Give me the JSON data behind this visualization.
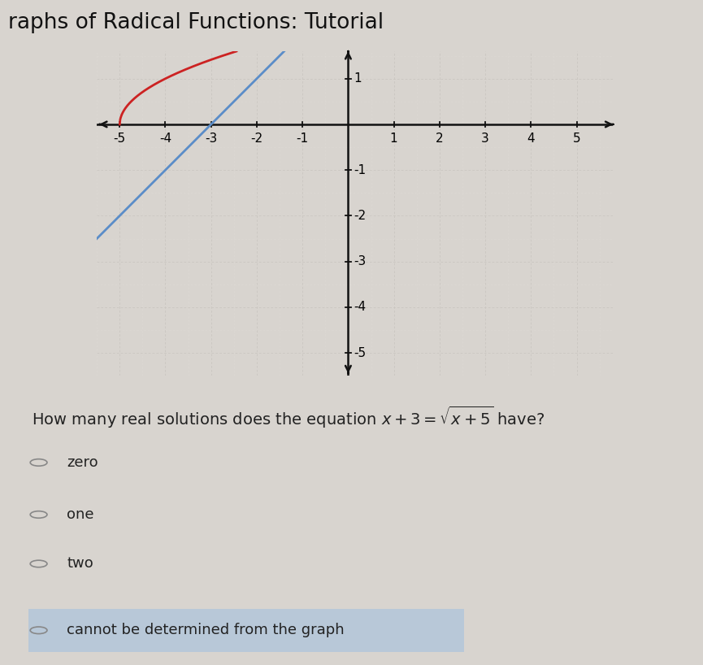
{
  "title": "raphs of Radical Functions: Tutorial",
  "title_bg_color": "#c5d3e0",
  "plot_bg_color": "#f0ede8",
  "page_bg_color": "#d8d4cf",
  "x_min": -5.5,
  "x_max": 5.8,
  "y_min": -5.5,
  "y_max": 1.6,
  "x_ticks": [
    -5,
    -4,
    -3,
    -2,
    -1,
    1,
    2,
    3,
    4,
    5
  ],
  "y_ticks": [
    -5,
    -4,
    -3,
    -2,
    -1,
    1
  ],
  "radical_color": "#cc2222",
  "linear_color": "#5b8dc8",
  "question_text": "How many real solutions does the equation x + 3 = √x + 5 have?",
  "choices": [
    "zero",
    "one",
    "two",
    "cannot be determined from the graph"
  ],
  "highlight_color": "#b8c8d8",
  "choice_text_color": "#222222",
  "font_size_title": 19,
  "font_size_question": 14,
  "font_size_choice": 13,
  "font_size_tick": 11,
  "grid_major_color": "#c8c4be",
  "grid_minor_color": "#dedad5",
  "axis_color": "#111111"
}
